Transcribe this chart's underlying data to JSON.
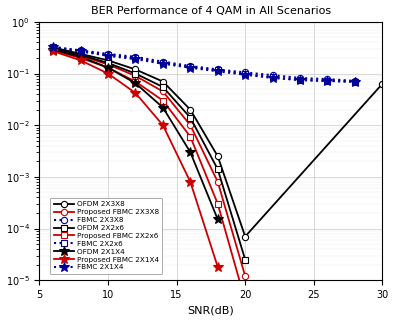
{
  "title": "BER Performance of 4 QAM in All Scenarios",
  "xlabel": "SNR(dB)",
  "xlim": [
    5,
    30
  ],
  "ylim_log": [
    -5,
    0
  ],
  "snr": [
    6,
    7,
    8,
    9,
    10,
    11,
    12,
    13,
    14,
    15,
    16,
    17,
    18,
    19,
    20,
    21,
    22,
    24,
    26,
    28,
    30
  ],
  "series": [
    {
      "label": "OFDM 2X3X8",
      "color": "#000000",
      "linestyle": "-",
      "marker": "o",
      "markerfacecolor": "white",
      "markersize": 4.5,
      "linewidth": 1.3,
      "data": [
        0.32,
        null,
        0.24,
        null,
        0.18,
        null,
        0.12,
        null,
        0.07,
        null,
        0.02,
        null,
        0.0025,
        null,
        7e-05,
        null,
        null,
        null,
        null,
        null,
        0.063
      ]
    },
    {
      "label": "Proposed FBMC 2X3X8",
      "color": "#cc0000",
      "linestyle": "-",
      "marker": "o",
      "markerfacecolor": "white",
      "markersize": 4.5,
      "linewidth": 1.3,
      "data": [
        0.3,
        null,
        0.22,
        null,
        0.15,
        null,
        0.09,
        null,
        0.045,
        null,
        0.01,
        null,
        0.0008,
        null,
        1.2e-05,
        null,
        null,
        null,
        null,
        null,
        null
      ]
    },
    {
      "label": "FBMC 2X3X8",
      "color": "#000099",
      "linestyle": ":",
      "marker": "o",
      "markerfacecolor": "white",
      "markersize": 4.5,
      "linewidth": 1.5,
      "data": [
        0.33,
        null,
        0.28,
        null,
        0.24,
        null,
        0.21,
        null,
        0.17,
        null,
        0.14,
        null,
        0.12,
        null,
        0.105,
        null,
        0.093,
        0.082,
        0.078,
        0.072,
        null
      ]
    },
    {
      "label": "OFDM 2X2x6",
      "color": "#000000",
      "linestyle": "-",
      "marker": "s",
      "markerfacecolor": "white",
      "markersize": 4.5,
      "linewidth": 1.3,
      "data": [
        0.31,
        null,
        0.23,
        null,
        0.16,
        null,
        0.1,
        null,
        0.055,
        null,
        0.014,
        null,
        0.0014,
        null,
        2.5e-05,
        null,
        null,
        null,
        null,
        null,
        null
      ]
    },
    {
      "label": "Proposed FBMC 2X2x6",
      "color": "#cc0000",
      "linestyle": "-",
      "marker": "s",
      "markerfacecolor": "white",
      "markersize": 4.5,
      "linewidth": 1.3,
      "data": [
        0.28,
        null,
        0.2,
        null,
        0.13,
        null,
        0.07,
        null,
        0.03,
        null,
        0.006,
        null,
        0.0003,
        null,
        4e-06,
        null,
        null,
        null,
        null,
        null,
        null
      ]
    },
    {
      "label": "FBMC 2X2x6",
      "color": "#000099",
      "linestyle": ":",
      "marker": "s",
      "markerfacecolor": "white",
      "markersize": 4.5,
      "linewidth": 1.5,
      "data": [
        0.32,
        null,
        0.27,
        null,
        0.23,
        null,
        0.2,
        null,
        0.16,
        null,
        0.135,
        null,
        0.115,
        null,
        0.098,
        null,
        0.085,
        0.075,
        0.072,
        0.07,
        null
      ]
    },
    {
      "label": "OFDM 2X1X4",
      "color": "#000000",
      "linestyle": "-",
      "marker": "*",
      "markerfacecolor": "#000000",
      "markersize": 7,
      "linewidth": 1.3,
      "data": [
        0.29,
        null,
        0.21,
        null,
        0.13,
        null,
        0.065,
        null,
        0.022,
        null,
        0.003,
        null,
        0.00015,
        null,
        null,
        null,
        null,
        null,
        null,
        null,
        null
      ]
    },
    {
      "label": "Proposed FBMC 2X1X4",
      "color": "#cc0000",
      "linestyle": "-",
      "marker": "*",
      "markerfacecolor": "#cc0000",
      "markersize": 7,
      "linewidth": 1.3,
      "data": [
        0.27,
        null,
        0.18,
        null,
        0.1,
        null,
        0.042,
        null,
        0.01,
        null,
        0.0008,
        null,
        1.8e-05,
        null,
        null,
        null,
        null,
        null,
        null,
        null,
        null
      ]
    },
    {
      "label": "FBMC 2X1X4",
      "color": "#000099",
      "linestyle": ":",
      "marker": "*",
      "markerfacecolor": "#000099",
      "markersize": 7,
      "linewidth": 1.5,
      "data": [
        0.32,
        null,
        0.27,
        null,
        0.22,
        null,
        0.19,
        null,
        0.155,
        null,
        0.13,
        null,
        0.11,
        null,
        0.095,
        null,
        0.082,
        0.075,
        0.072,
        0.069,
        null
      ]
    }
  ]
}
